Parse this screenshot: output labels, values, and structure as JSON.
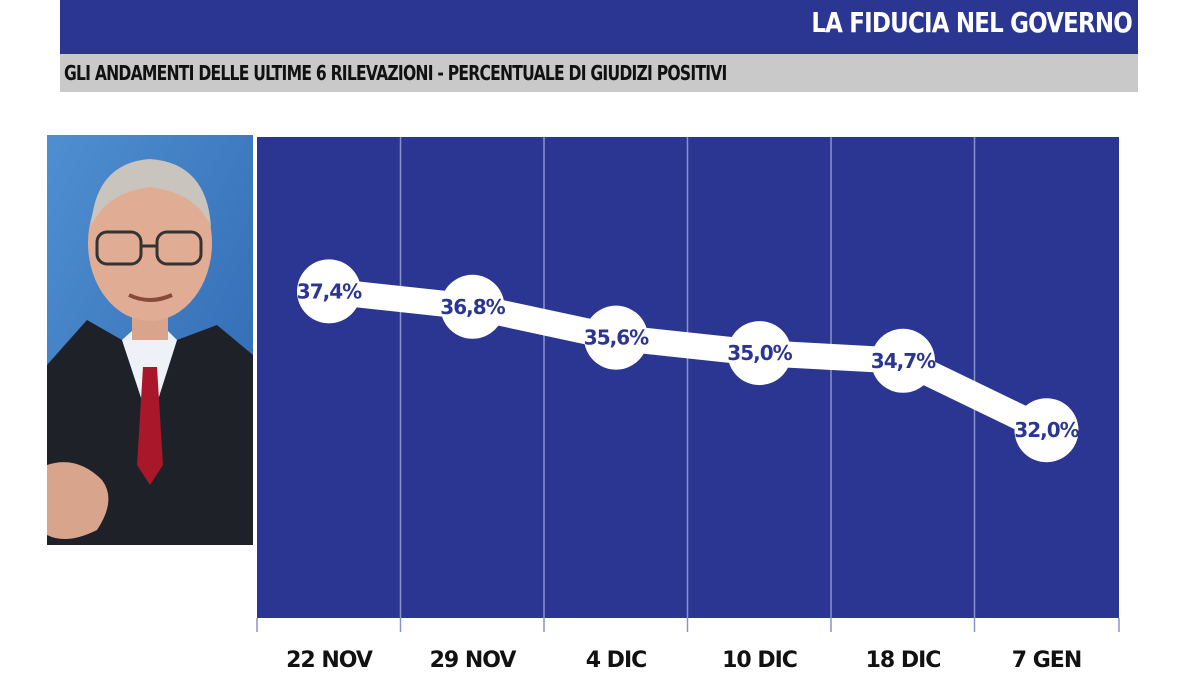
{
  "header": {
    "title": "LA FIDUCIA NEL GOVERNO",
    "subtitle": "GLI ANDAMENTI DELLE ULTIME 6 RILEVAZIONI - PERCENTUALE DI GIUDIZI POSITIVI"
  },
  "colors": {
    "header_bg": "#2b3592",
    "plot_bg": "#2b3592",
    "subtitle_bg": "#c9c9c9",
    "line": "#ffffff",
    "point_label": "#2b3592"
  },
  "chart_data": {
    "type": "line",
    "title": "LA FIDUCIA NEL GOVERNO",
    "subtitle": "GLI ANDAMENTI DELLE ULTIME 6 RILEVAZIONI - PERCENTUALE DI GIUDIZI POSITIVI",
    "categories": [
      "22 NOV",
      "29 NOV",
      "4 DIC",
      "10 DIC",
      "18 DIC",
      "7 GEN"
    ],
    "series": [
      {
        "values": [
          37.4,
          36.8,
          35.6,
          35.0,
          34.7,
          32.0
        ],
        "labels": [
          "37,4%",
          "36,8%",
          "35,6%",
          "35,0%",
          "34,7%",
          "32,0%"
        ]
      }
    ],
    "xlabel": "",
    "ylabel": "",
    "ylim": [
      24.7,
      43.4
    ],
    "grid": "vertical",
    "legend": "none"
  }
}
